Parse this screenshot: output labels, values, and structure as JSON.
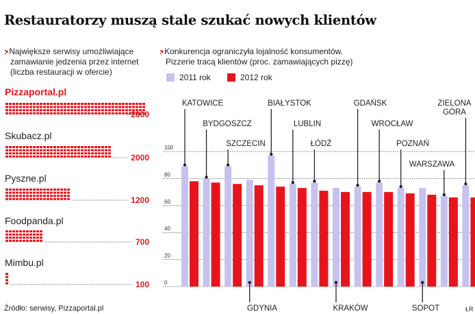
{
  "title": "Restauratorzy muszą stale szukać nowych klientów",
  "left_panel": {
    "marker": ":•",
    "subtitle_lines": [
      "Największe serwisy umożliwiające",
      "zamawianie jedzenia przez internet",
      "(liczba restauracji w ofercie)"
    ],
    "services": [
      {
        "name": "Pizzaportal.pl",
        "value_label": "2600",
        "value": 2600
      },
      {
        "name": "Skubacz.pl",
        "value_label": "2000",
        "value": 2000
      },
      {
        "name": "Pyszne.pl",
        "value_label": "1200",
        "value": 1200
      },
      {
        "name": "Foodpanda.pl",
        "value_label": "700",
        "value": 700
      },
      {
        "name": "Mimbu.pl",
        "value_label": "100",
        "value": 100
      }
    ]
  },
  "right_panel": {
    "marker": ":•",
    "subtitle_lines": [
      "Konkurencja ograniczyła lojalność konsumentów.",
      "Pizzerie tracą klientów (proc. zamawiających pizzę)"
    ]
  },
  "colors": {
    "accent": "#e8141b",
    "series_2011": "#c6c2ef",
    "series_2012": "#e8141b"
  },
  "chart_data": {
    "type": "bar",
    "categories": [
      "KATOWICE",
      "BYDGOSZCZ",
      "SZCZECIN",
      "GDYNIA",
      "BIAŁYSTOK",
      "LUBLIN",
      "ŁÓDŹ",
      "KRAKÓW",
      "GDAŃSK",
      "WROCŁAW",
      "POZNAŃ",
      "SOPOT",
      "WARSZAWA",
      "ZIELONA GÓRA"
    ],
    "series": [
      {
        "name": "2011 rok",
        "values": [
          89,
          80,
          89,
          79,
          97,
          76,
          77,
          73,
          74,
          77,
          73,
          73,
          67,
          75
        ]
      },
      {
        "name": "2012 rok",
        "values": [
          78,
          77,
          76,
          75,
          74,
          73,
          71,
          70,
          70,
          70,
          69,
          68,
          66,
          66
        ]
      }
    ],
    "yticks": [
      "100",
      "80",
      "60",
      "40",
      "20",
      "0"
    ],
    "ylim": [
      0,
      100
    ],
    "legend": "top-left",
    "grid": true
  },
  "source": "Źródło: serwisy, Pizzaportal.pl",
  "credit": "ŁR"
}
